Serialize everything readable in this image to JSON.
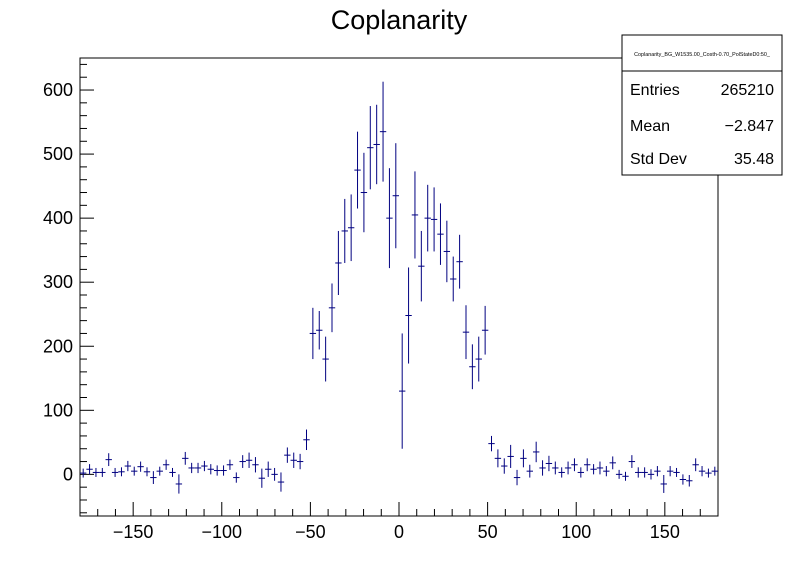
{
  "chart_data": {
    "type": "histogram",
    "title": "Coplanarity",
    "xlabel": "",
    "ylabel": "",
    "xlim": [
      -180,
      180
    ],
    "ylim": [
      -65,
      650
    ],
    "x_ticks": [
      -150,
      -100,
      -50,
      0,
      50,
      100,
      150
    ],
    "x_tick_labels": [
      "−150",
      "−100",
      "−50",
      "0",
      "50",
      "100",
      "150"
    ],
    "y_ticks": [
      0,
      100,
      200,
      300,
      400,
      500,
      600
    ],
    "y_tick_labels": [
      "0",
      "100",
      "200",
      "300",
      "400",
      "500",
      "600"
    ],
    "bin_width": 3.6,
    "line_color": "#000080",
    "grid": false,
    "stats_box": {
      "name": "Coplanarity_BG_W1535.00_Costh-0.70_PolStateD0:50_",
      "placement": "top-right",
      "rows": [
        {
          "label": "Entries",
          "value": "265210"
        },
        {
          "label": "Mean",
          "value": "−2.847"
        },
        {
          "label": "Std Dev",
          "value": "35.48"
        }
      ]
    },
    "x": [
      -178.2,
      -174.6,
      -171.0,
      -167.4,
      -163.8,
      -160.2,
      -156.6,
      -153.0,
      -149.4,
      -145.8,
      -142.2,
      -138.6,
      -135.0,
      -131.4,
      -127.8,
      -124.2,
      -120.6,
      -117.0,
      -113.4,
      -109.8,
      -106.2,
      -102.6,
      -99.0,
      -95.4,
      -91.8,
      -88.2,
      -84.6,
      -81.0,
      -77.4,
      -73.8,
      -70.2,
      -66.6,
      -63.0,
      -59.4,
      -55.8,
      -52.2,
      -48.6,
      -45.0,
      -41.4,
      -37.8,
      -34.2,
      -30.6,
      -27.0,
      -23.4,
      -19.8,
      -16.2,
      -12.6,
      -9.0,
      -5.4,
      -1.8,
      1.8,
      5.4,
      9.0,
      12.6,
      16.2,
      19.8,
      23.4,
      27.0,
      30.6,
      34.2,
      37.8,
      41.4,
      45.0,
      48.6,
      52.2,
      55.8,
      59.4,
      63.0,
      66.6,
      70.2,
      73.8,
      77.4,
      81.0,
      84.6,
      88.2,
      91.8,
      95.4,
      99.0,
      102.6,
      106.2,
      109.8,
      113.4,
      117.0,
      120.6,
      124.2,
      127.8,
      131.4,
      135.0,
      138.6,
      142.2,
      145.8,
      149.4,
      153.0,
      156.6,
      160.2,
      163.8,
      167.4,
      171.0,
      174.6,
      178.2
    ],
    "values": [
      2,
      8,
      3,
      3,
      23,
      3,
      4,
      13,
      5,
      12,
      4,
      -5,
      5,
      15,
      3,
      -15,
      25,
      10,
      10,
      13,
      8,
      6,
      6,
      15,
      -5,
      20,
      22,
      15,
      -6,
      8,
      0,
      -12,
      30,
      22,
      20,
      54,
      220,
      225,
      180,
      260,
      330,
      380,
      385,
      475,
      440,
      510,
      515,
      535,
      400,
      435,
      130,
      248,
      405,
      325,
      400,
      398,
      375,
      348,
      305,
      332,
      222,
      168,
      180,
      225,
      48,
      25,
      13,
      28,
      -5,
      25,
      5,
      35,
      10,
      17,
      10,
      3,
      10,
      15,
      3,
      15,
      8,
      10,
      5,
      18,
      0,
      -3,
      20,
      3,
      3,
      0,
      5,
      -15,
      5,
      3,
      -8,
      -10,
      15,
      5,
      2,
      5
    ],
    "errors": [
      7,
      8,
      7,
      7,
      10,
      7,
      7,
      8,
      7,
      8,
      7,
      10,
      7,
      8,
      7,
      15,
      10,
      8,
      8,
      8,
      8,
      8,
      8,
      8,
      8,
      10,
      12,
      12,
      15,
      12,
      10,
      15,
      12,
      12,
      12,
      16,
      40,
      30,
      35,
      38,
      50,
      50,
      52,
      60,
      62,
      65,
      62,
      78,
      78,
      82,
      90,
      75,
      68,
      55,
      52,
      50,
      48,
      48,
      35,
      42,
      42,
      35,
      35,
      38,
      12,
      14,
      12,
      18,
      12,
      14,
      10,
      16,
      12,
      12,
      10,
      8,
      10,
      10,
      8,
      10,
      8,
      10,
      8,
      10,
      7,
      7,
      10,
      8,
      8,
      8,
      8,
      14,
      8,
      7,
      8,
      9,
      10,
      8,
      7,
      7
    ]
  }
}
